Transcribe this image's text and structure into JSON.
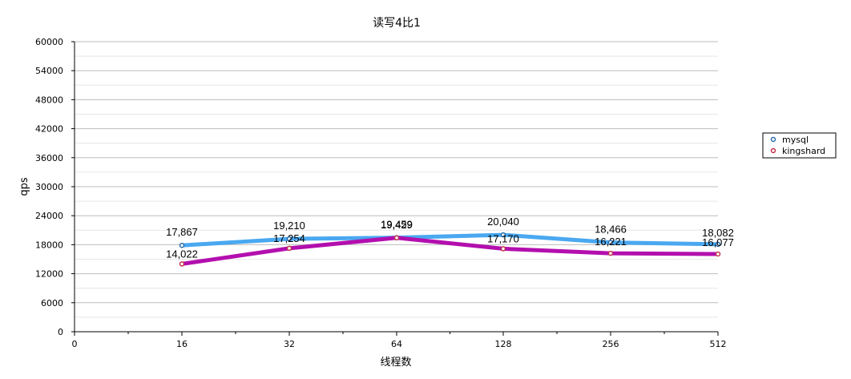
{
  "chart_data": {
    "type": "line",
    "title": "读写4比1",
    "xlabel": "线程数",
    "ylabel": "qps",
    "x_tick_labels": [
      "0",
      "16",
      "32",
      "64",
      "128",
      "256",
      "512"
    ],
    "categories": [
      "16",
      "32",
      "64",
      "128",
      "256",
      "512"
    ],
    "ylim": [
      0,
      60000
    ],
    "y_ticks": [
      0,
      6000,
      12000,
      18000,
      24000,
      30000,
      36000,
      42000,
      48000,
      54000,
      60000
    ],
    "y_tick_labels": [
      "0",
      "6000",
      "12000",
      "18000",
      "24000",
      "30000",
      "36000",
      "42000",
      "48000",
      "54000",
      "60000"
    ],
    "grid": true,
    "legend_position": "right",
    "series": [
      {
        "name": "mysql",
        "color": "#4aa8f0",
        "marker_color": "#2a6ca8",
        "values": [
          17867,
          19210,
          19459,
          20040,
          18466,
          18082
        ],
        "labels": [
          "17,867",
          "19,210",
          "19,459",
          "20,040",
          "18,466",
          "18,082"
        ]
      },
      {
        "name": "kingshard",
        "color": "#b30fae",
        "marker_color": "#c0334a",
        "values": [
          14022,
          17254,
          19429,
          17170,
          16221,
          16077
        ],
        "labels": [
          "14,022",
          "17,254",
          "19,429",
          "17,170",
          "16,221",
          "16,077"
        ]
      }
    ]
  }
}
